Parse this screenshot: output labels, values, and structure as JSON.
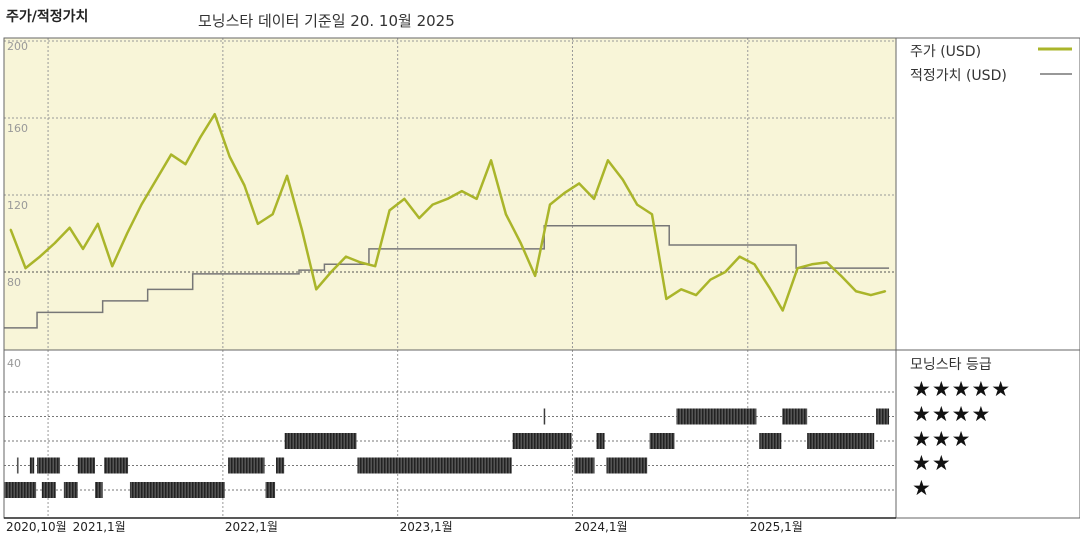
{
  "header": {
    "title": "주가/적정가치",
    "subtitle": "모닝스타 데이터 기준일 20. 10월 2025"
  },
  "legend": {
    "price": "주가 (USD)",
    "fair_value": "적정가치 (USD)",
    "rating_title": "모닝스타 등급",
    "stars": [
      "★★★★★",
      "★★★★",
      "★★★",
      "★★",
      "★"
    ]
  },
  "colors": {
    "price": "#aab52a",
    "fair_value": "#777777",
    "panel_bg": "#f8f5d8",
    "rating_bar": "#222222"
  },
  "chart_data": [
    {
      "type": "line",
      "xlim": [
        "2020-10-01",
        "2025-10-25"
      ],
      "ylim": [
        40,
        200
      ],
      "y_ticks": [
        "200",
        "160",
        "120",
        "80"
      ],
      "y_tick_values": [
        200,
        160,
        120,
        80
      ],
      "x_ticks": [
        "2020,10월",
        "2021,1월",
        "2022,1월",
        "2023,1월",
        "2024,1월",
        "2025,1월"
      ],
      "x_tick_dates": [
        "2020-10-01",
        "2021-01-01",
        "2022-01-01",
        "2023-01-01",
        "2024-01-01",
        "2025-01-01"
      ],
      "grid": true,
      "legend": "right",
      "series": [
        {
          "name": "주가 (USD)",
          "x": [
            "2020-10",
            "2020-11",
            "2020-12",
            "2021-01",
            "2021-02",
            "2021-03",
            "2021-04",
            "2021-05",
            "2021-06",
            "2021-07",
            "2021-08",
            "2021-09",
            "2021-10",
            "2021-11",
            "2021-12",
            "2022-01",
            "2022-02",
            "2022-03",
            "2022-04",
            "2022-05",
            "2022-06",
            "2022-07",
            "2022-08",
            "2022-09",
            "2022-10",
            "2022-11",
            "2022-12",
            "2023-01",
            "2023-02",
            "2023-03",
            "2023-04",
            "2023-05",
            "2023-06",
            "2023-07",
            "2023-08",
            "2023-09",
            "2023-10",
            "2023-11",
            "2023-12",
            "2024-01",
            "2024-02",
            "2024-03",
            "2024-04",
            "2024-05",
            "2024-06",
            "2024-07",
            "2024-08",
            "2024-09",
            "2024-10",
            "2024-11",
            "2024-12",
            "2025-01",
            "2025-02",
            "2025-03",
            "2025-04",
            "2025-05",
            "2025-06",
            "2025-07",
            "2025-08",
            "2025-09",
            "2025-10"
          ],
          "values": [
            102,
            82,
            88,
            95,
            103,
            92,
            105,
            83,
            100,
            115,
            128,
            141,
            136,
            150,
            162,
            140,
            125,
            105,
            110,
            130,
            102,
            71,
            80,
            88,
            85,
            83,
            112,
            118,
            108,
            115,
            118,
            122,
            118,
            138,
            110,
            95,
            78,
            115,
            121,
            126,
            118,
            138,
            128,
            115,
            110,
            66,
            71,
            68,
            76,
            80,
            88,
            84,
            72,
            60,
            82,
            84,
            85,
            78,
            70,
            68,
            70
          ]
        },
        {
          "name": "적정가치 (USD)",
          "step": true,
          "x": [
            "2020-10-01",
            "2020-12-09",
            "2021-04-25",
            "2021-07-28",
            "2021-10-30",
            "2022-06-09",
            "2022-08-01",
            "2022-11-02",
            "2023-11-03",
            "2024-07-21",
            "2025-04-12",
            "2025-10-23"
          ],
          "values": [
            51,
            59,
            65,
            71,
            79,
            81,
            84,
            92,
            104,
            94,
            82,
            82
          ]
        }
      ]
    },
    {
      "type": "bar",
      "name": "rating",
      "ylim_label": "40",
      "levels": [
        5,
        4,
        3,
        2,
        1
      ],
      "segments": [
        {
          "stars": 1,
          "from": "2020-10-01",
          "to": "2020-12-07"
        },
        {
          "stars": 1,
          "from": "2020-12-19",
          "to": "2021-01-17"
        },
        {
          "stars": 1,
          "from": "2021-02-03",
          "to": "2021-03-04"
        },
        {
          "stars": 1,
          "from": "2021-04-09",
          "to": "2021-04-25"
        },
        {
          "stars": 1,
          "from": "2021-06-21",
          "to": "2022-01-05"
        },
        {
          "stars": 1,
          "from": "2022-03-31",
          "to": "2022-04-20"
        },
        {
          "stars": 2,
          "from": "2020-10-28",
          "to": "2020-10-31"
        },
        {
          "stars": 2,
          "from": "2020-11-24",
          "to": "2020-12-03"
        },
        {
          "stars": 2,
          "from": "2020-12-09",
          "to": "2021-01-26"
        },
        {
          "stars": 2,
          "from": "2021-03-04",
          "to": "2021-04-09"
        },
        {
          "stars": 2,
          "from": "2021-04-28",
          "to": "2021-06-17"
        },
        {
          "stars": 2,
          "from": "2022-01-12",
          "to": "2022-03-29"
        },
        {
          "stars": 2,
          "from": "2022-04-22",
          "to": "2022-05-09"
        },
        {
          "stars": 2,
          "from": "2022-10-09",
          "to": "2023-08-27"
        },
        {
          "stars": 2,
          "from": "2024-01-05",
          "to": "2024-02-16"
        },
        {
          "stars": 2,
          "from": "2024-03-12",
          "to": "2024-06-05"
        },
        {
          "stars": 3,
          "from": "2022-05-10",
          "to": "2022-10-07"
        },
        {
          "stars": 3,
          "from": "2023-08-29",
          "to": "2023-12-30"
        },
        {
          "stars": 3,
          "from": "2024-02-20",
          "to": "2024-03-08"
        },
        {
          "stars": 3,
          "from": "2024-06-10",
          "to": "2024-08-01"
        },
        {
          "stars": 3,
          "from": "2025-01-25",
          "to": "2025-03-12"
        },
        {
          "stars": 3,
          "from": "2025-05-05",
          "to": "2025-09-22"
        },
        {
          "stars": 4,
          "from": "2023-11-02",
          "to": "2023-11-04"
        },
        {
          "stars": 4,
          "from": "2024-08-05",
          "to": "2025-01-19"
        },
        {
          "stars": 4,
          "from": "2025-03-14",
          "to": "2025-05-05"
        },
        {
          "stars": 4,
          "from": "2025-09-26",
          "to": "2025-10-23"
        }
      ]
    }
  ]
}
